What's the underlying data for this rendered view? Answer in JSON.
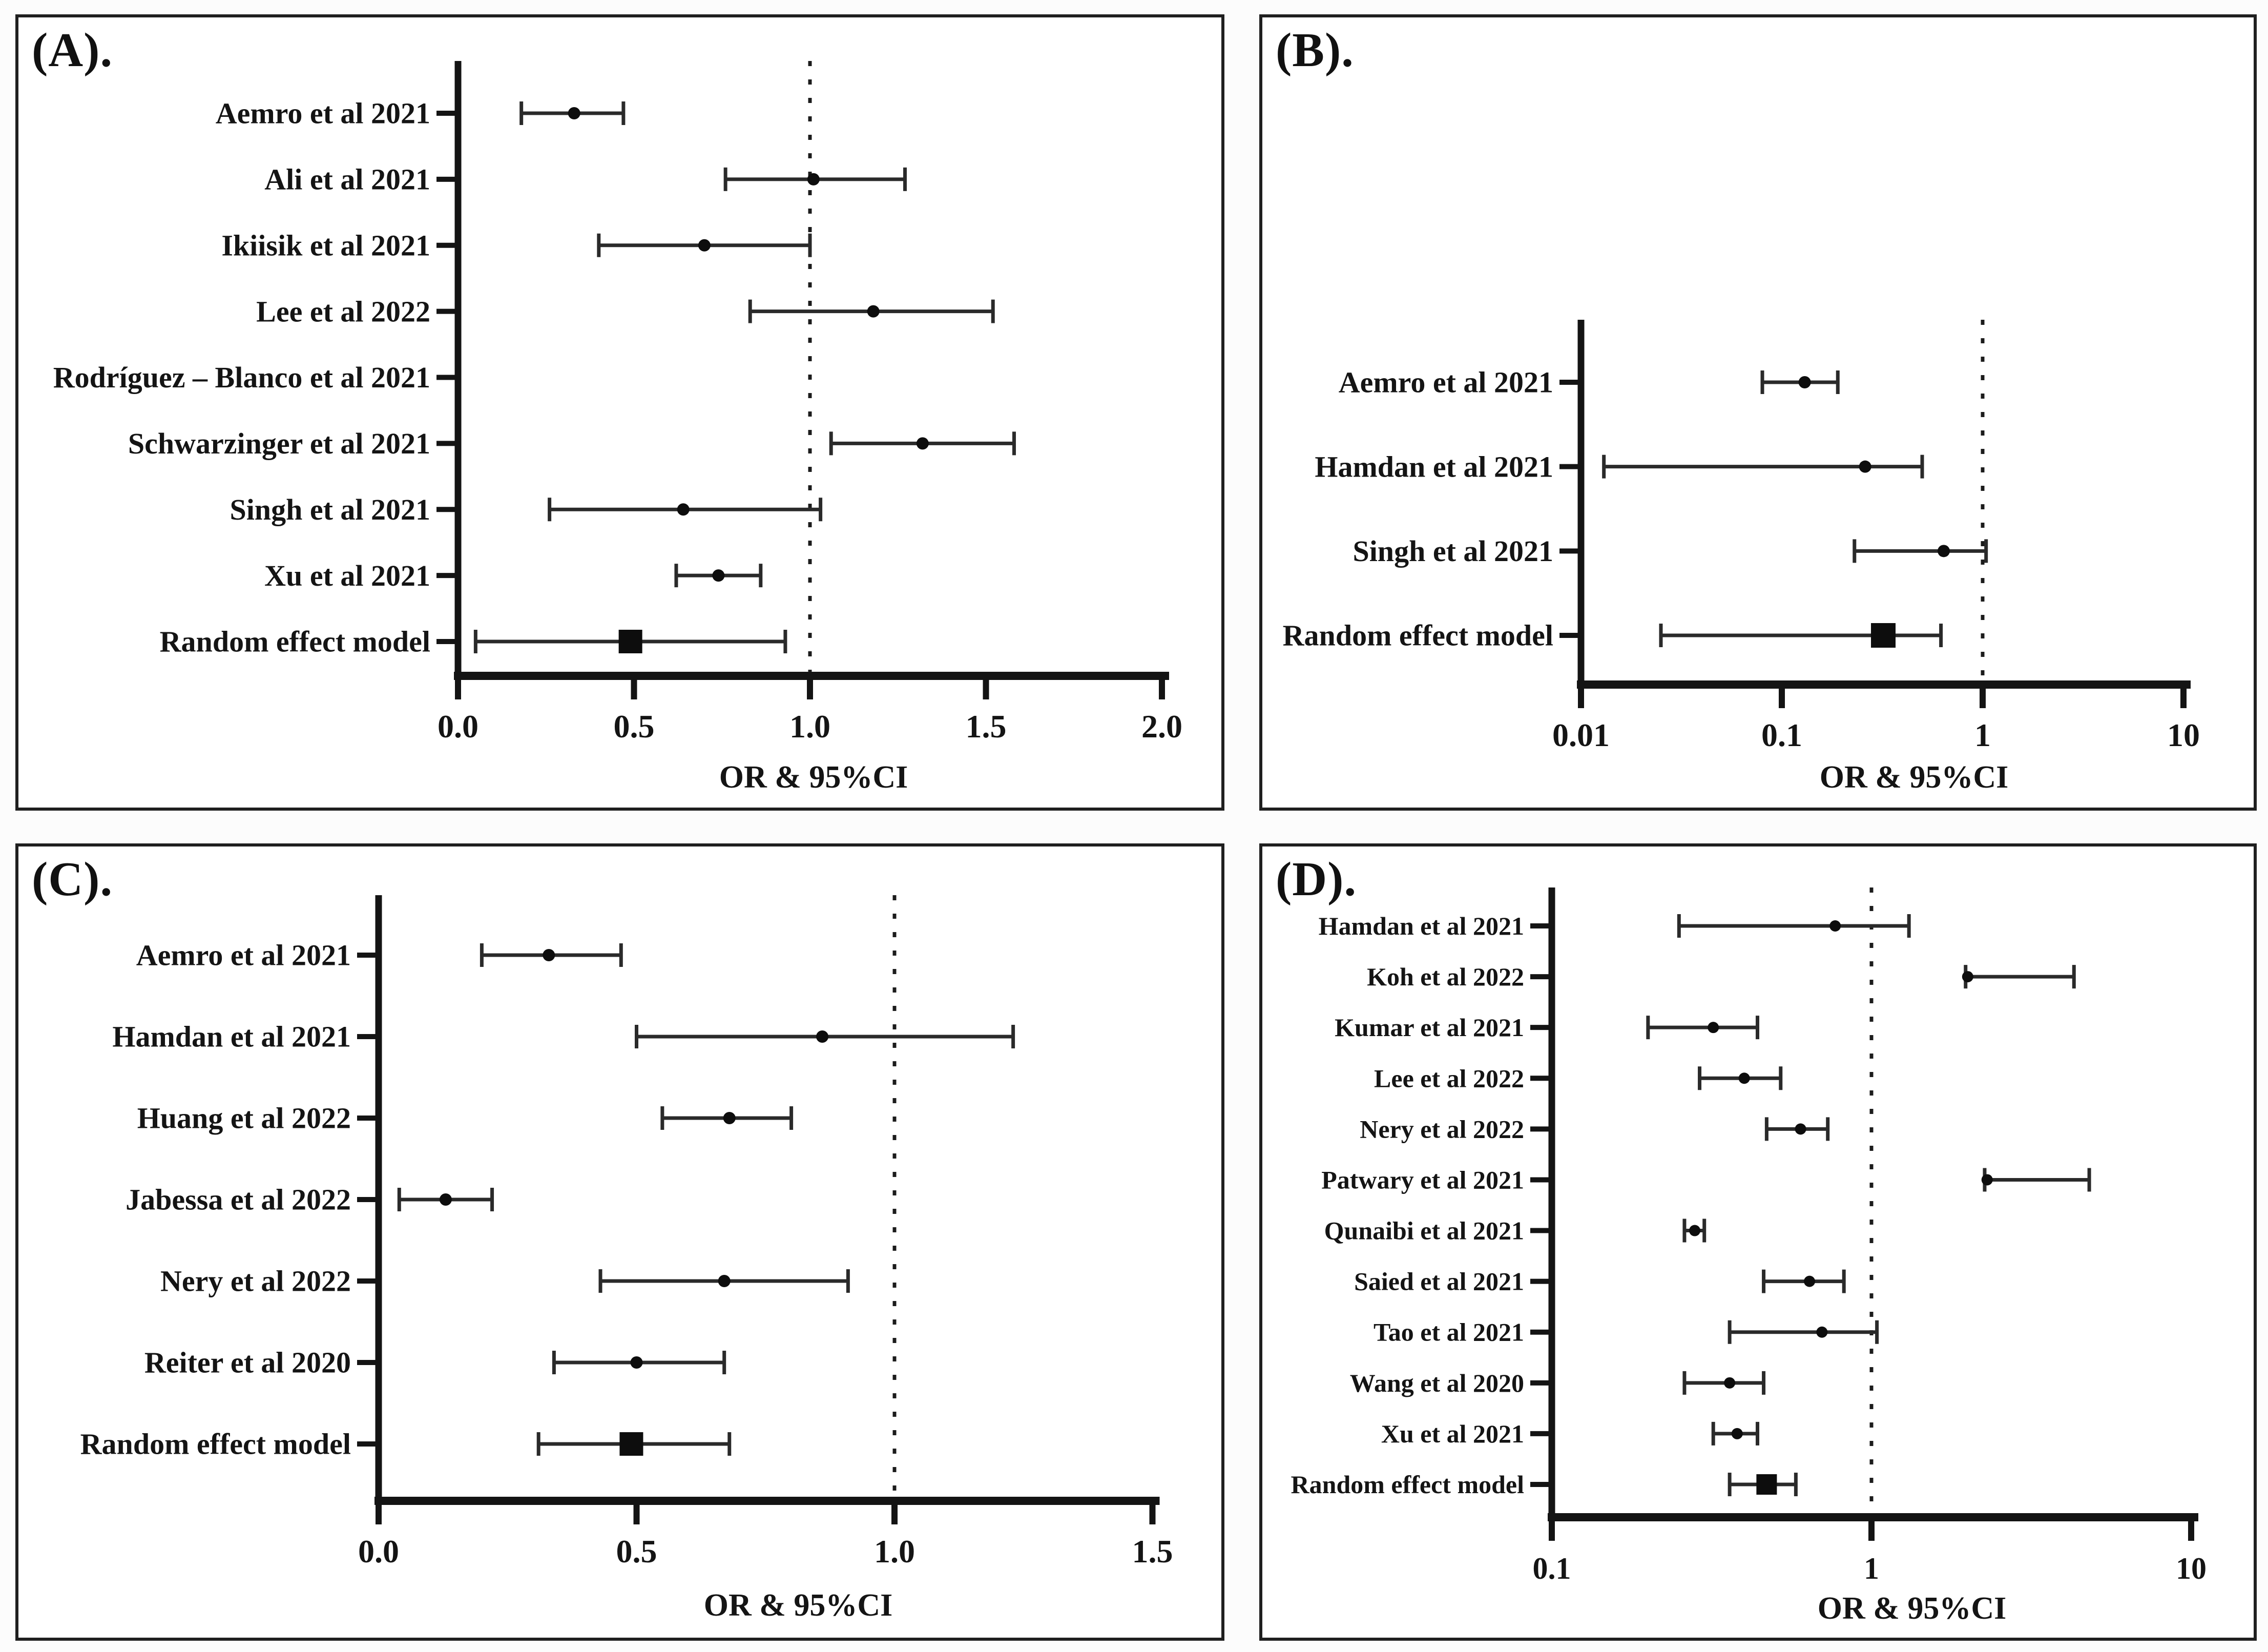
{
  "page": {
    "background": "#fcfcfc",
    "ink": "#141414",
    "panel_border": "#1f1f1f"
  },
  "chart_data": [
    {
      "type": "forest",
      "panel_label": "(A).",
      "xlabel": "OR & 95%CI",
      "axis": {
        "scale": "linear",
        "min": 0,
        "max": 2.0,
        "ticks": [
          0,
          0.5,
          1.0,
          1.5,
          2.0
        ],
        "tick_labels": [
          "0.0",
          "0.5",
          "1.0",
          "1.5",
          "2.0"
        ],
        "refline": 1,
        "refline_style": "dotted"
      },
      "studies": [
        {
          "label": "Aemro et al 2021",
          "or": 0.33,
          "lo": 0.18,
          "hi": 0.47
        },
        {
          "label": "Ali et al 2021",
          "or": 1.01,
          "lo": 0.76,
          "hi": 1.27
        },
        {
          "label": "Ikiisik et al 2021",
          "or": 0.7,
          "lo": 0.4,
          "hi": 1.0
        },
        {
          "label": "Lee et al 2022",
          "or": 1.18,
          "lo": 0.83,
          "hi": 1.52
        },
        {
          "label": "Rodríguez – Blanco et al 2021",
          "or": null,
          "lo": null,
          "hi": null
        },
        {
          "label": "Schwarzinger et al 2021",
          "or": 1.32,
          "lo": 1.06,
          "hi": 1.58
        },
        {
          "label": "Singh et al 2021",
          "or": 0.64,
          "lo": 0.26,
          "hi": 1.03
        },
        {
          "label": "Xu et al 2021",
          "or": 0.74,
          "lo": 0.62,
          "hi": 0.86
        },
        {
          "label": "Random effect model",
          "or": 0.49,
          "lo": 0.05,
          "hi": 0.93,
          "summary": true
        }
      ]
    },
    {
      "type": "forest",
      "panel_label": "(B).",
      "xlabel": "OR & 95%CI",
      "axis": {
        "scale": "log",
        "min": 0.01,
        "max": 10,
        "ticks": [
          0.01,
          0.1,
          1,
          10
        ],
        "tick_labels": [
          "0.01",
          "0.1",
          "1",
          "10"
        ],
        "refline": 1,
        "refline_style": "dotted"
      },
      "studies": [
        {
          "label": "Aemro et al 2021",
          "or": 0.13,
          "lo": 0.08,
          "hi": 0.19
        },
        {
          "label": "Hamdan et al 2021",
          "or": 0.26,
          "lo": 0.013,
          "hi": 0.5
        },
        {
          "label": "Singh et al 2021",
          "or": 0.64,
          "lo": 0.23,
          "hi": 1.04
        },
        {
          "label": "Random effect model",
          "or": 0.32,
          "lo": 0.025,
          "hi": 0.62,
          "summary": true
        }
      ]
    },
    {
      "type": "forest",
      "panel_label": "(C).",
      "xlabel": "OR & 95%CI",
      "axis": {
        "scale": "linear",
        "min": 0,
        "max": 1.5,
        "ticks": [
          0,
          0.5,
          1.0,
          1.5
        ],
        "tick_labels": [
          "0.0",
          "0.5",
          "1.0",
          "1.5"
        ],
        "refline": 1,
        "refline_style": "dotted"
      },
      "studies": [
        {
          "label": "Aemro et al 2021",
          "or": 0.33,
          "lo": 0.2,
          "hi": 0.47
        },
        {
          "label": "Hamdan et al 2021",
          "or": 0.86,
          "lo": 0.5,
          "hi": 1.23
        },
        {
          "label": "Huang et al 2022",
          "or": 0.68,
          "lo": 0.55,
          "hi": 0.8
        },
        {
          "label": "Jabessa et al 2022",
          "or": 0.13,
          "lo": 0.04,
          "hi": 0.22
        },
        {
          "label": "Nery et al 2022",
          "or": 0.67,
          "lo": 0.43,
          "hi": 0.91
        },
        {
          "label": "Reiter et al 2020",
          "or": 0.5,
          "lo": 0.34,
          "hi": 0.67
        },
        {
          "label": "Random effect model",
          "or": 0.49,
          "lo": 0.31,
          "hi": 0.68,
          "summary": true
        }
      ]
    },
    {
      "type": "forest",
      "panel_label": "(D).",
      "xlabel": "OR & 95%CI",
      "axis": {
        "scale": "log",
        "min": 0.1,
        "max": 10,
        "ticks": [
          0.1,
          1,
          10
        ],
        "tick_labels": [
          "0.1",
          "1",
          "10"
        ],
        "refline": 1,
        "refline_style": "dotted"
      },
      "studies": [
        {
          "label": "Hamdan et al 2021",
          "or": 0.77,
          "lo": 0.25,
          "hi": 1.31
        },
        {
          "label": "Koh et al 2022",
          "or": 2.0,
          "lo": 1.97,
          "hi": 4.3
        },
        {
          "label": "Kumar et al 2021",
          "or": 0.32,
          "lo": 0.2,
          "hi": 0.44
        },
        {
          "label": "Lee et al 2022",
          "or": 0.4,
          "lo": 0.29,
          "hi": 0.52
        },
        {
          "label": "Nery et al 2022",
          "or": 0.6,
          "lo": 0.47,
          "hi": 0.73
        },
        {
          "label": "Patwary et al 2021",
          "or": 2.3,
          "lo": 2.26,
          "hi": 4.8
        },
        {
          "label": "Qunaibi et al 2021",
          "or": 0.28,
          "lo": 0.26,
          "hi": 0.3
        },
        {
          "label": "Saied et al 2021",
          "or": 0.64,
          "lo": 0.46,
          "hi": 0.82
        },
        {
          "label": "Tao et al 2021",
          "or": 0.7,
          "lo": 0.36,
          "hi": 1.04
        },
        {
          "label": "Wang et al 2020",
          "or": 0.36,
          "lo": 0.26,
          "hi": 0.46
        },
        {
          "label": "Xu et al 2021",
          "or": 0.38,
          "lo": 0.32,
          "hi": 0.44
        },
        {
          "label": "Random effect model",
          "or": 0.47,
          "lo": 0.36,
          "hi": 0.58,
          "summary": true
        }
      ]
    }
  ]
}
